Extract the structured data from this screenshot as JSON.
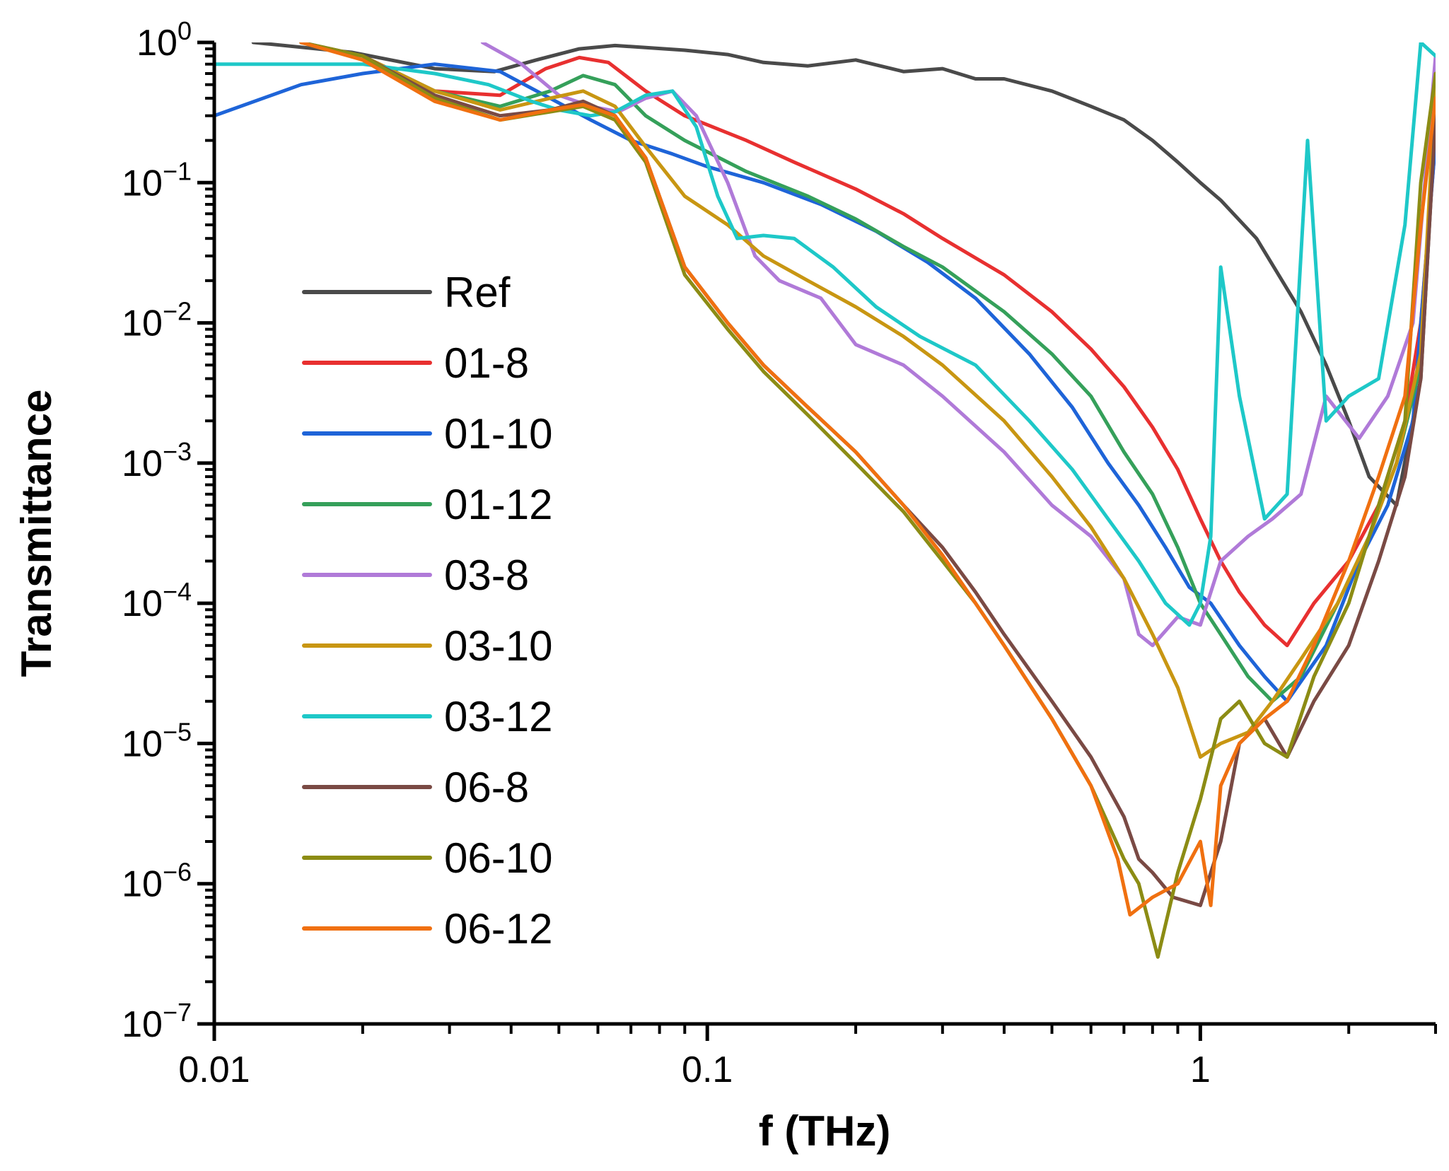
{
  "chart_data": {
    "type": "line",
    "xlabel": "f (THz)",
    "ylabel": "Transmittance",
    "x_scale": "log",
    "y_scale": "log",
    "xlim": [
      0.01,
      3.0
    ],
    "ylim": [
      1e-07,
      1
    ],
    "x_ticks": [
      {
        "value": 0.01,
        "label": "0.01"
      },
      {
        "value": 0.1,
        "label": "0.1"
      },
      {
        "value": 1,
        "label": "1"
      }
    ],
    "y_ticks": [
      {
        "value": 1,
        "base": "10",
        "exp": "0"
      },
      {
        "value": 0.1,
        "base": "10",
        "exp": "−1"
      },
      {
        "value": 0.01,
        "base": "10",
        "exp": "−2"
      },
      {
        "value": 0.001,
        "base": "10",
        "exp": "−3"
      },
      {
        "value": 0.0001,
        "base": "10",
        "exp": "−4"
      },
      {
        "value": 1e-05,
        "base": "10",
        "exp": "−5"
      },
      {
        "value": 1e-06,
        "base": "10",
        "exp": "−6"
      },
      {
        "value": 1e-07,
        "base": "10",
        "exp": "−7"
      }
    ],
    "grid": false,
    "legend_position": "left-center",
    "series": [
      {
        "name": "Ref",
        "color": "#4a4a4a",
        "x": [
          0.012,
          0.019,
          0.028,
          0.037,
          0.045,
          0.055,
          0.065,
          0.075,
          0.09,
          0.11,
          0.13,
          0.16,
          0.2,
          0.25,
          0.3,
          0.35,
          0.4,
          0.5,
          0.6,
          0.7,
          0.8,
          0.9,
          1.0,
          1.1,
          1.3,
          1.6,
          1.8,
          2.0,
          2.2,
          2.5,
          2.8,
          3.0
        ],
        "y": [
          1.0,
          0.85,
          0.65,
          0.62,
          0.75,
          0.9,
          0.95,
          0.92,
          0.88,
          0.82,
          0.72,
          0.68,
          0.75,
          0.62,
          0.65,
          0.55,
          0.55,
          0.45,
          0.35,
          0.28,
          0.2,
          0.14,
          0.1,
          0.075,
          0.04,
          0.012,
          0.005,
          0.002,
          0.0008,
          0.0005,
          0.004,
          0.3
        ]
      },
      {
        "name": "01-8",
        "color": "#e83030",
        "x": [
          0.015,
          0.02,
          0.028,
          0.038,
          0.047,
          0.055,
          0.063,
          0.075,
          0.09,
          0.12,
          0.15,
          0.2,
          0.25,
          0.3,
          0.4,
          0.5,
          0.6,
          0.7,
          0.8,
          0.9,
          1.0,
          1.1,
          1.2,
          1.35,
          1.5,
          1.7,
          2.0,
          2.3,
          2.6,
          2.8,
          3.0
        ],
        "y": [
          1.0,
          0.8,
          0.45,
          0.42,
          0.65,
          0.78,
          0.72,
          0.45,
          0.3,
          0.2,
          0.14,
          0.09,
          0.06,
          0.04,
          0.022,
          0.012,
          0.0065,
          0.0035,
          0.0018,
          0.0009,
          0.0004,
          0.0002,
          0.00012,
          7e-05,
          5e-05,
          0.0001,
          0.0002,
          0.0005,
          0.002,
          0.01,
          0.2
        ]
      },
      {
        "name": "01-10",
        "color": "#1e64d8",
        "x": [
          0.01,
          0.015,
          0.02,
          0.028,
          0.038,
          0.048,
          0.058,
          0.07,
          0.085,
          0.1,
          0.13,
          0.17,
          0.22,
          0.28,
          0.35,
          0.45,
          0.55,
          0.65,
          0.75,
          0.85,
          0.95,
          1.05,
          1.2,
          1.35,
          1.5,
          1.8,
          2.1,
          2.4,
          2.7,
          3.0
        ],
        "y": [
          0.3,
          0.5,
          0.6,
          0.7,
          0.62,
          0.4,
          0.28,
          0.2,
          0.16,
          0.13,
          0.1,
          0.07,
          0.045,
          0.027,
          0.015,
          0.006,
          0.0025,
          0.001,
          0.0005,
          0.00025,
          0.00013,
          0.0001,
          5e-05,
          3e-05,
          2e-05,
          5e-05,
          0.0002,
          0.0005,
          0.002,
          0.2
        ]
      },
      {
        "name": "01-12",
        "color": "#35a05a",
        "x": [
          0.015,
          0.02,
          0.028,
          0.038,
          0.048,
          0.056,
          0.065,
          0.075,
          0.09,
          0.12,
          0.16,
          0.2,
          0.25,
          0.3,
          0.4,
          0.5,
          0.6,
          0.7,
          0.8,
          0.9,
          1.0,
          1.1,
          1.25,
          1.4,
          1.6,
          1.9,
          2.2,
          2.5,
          2.8,
          3.0
        ],
        "y": [
          1.0,
          0.8,
          0.45,
          0.35,
          0.45,
          0.58,
          0.5,
          0.3,
          0.2,
          0.12,
          0.08,
          0.055,
          0.035,
          0.025,
          0.012,
          0.006,
          0.003,
          0.0012,
          0.0006,
          0.00025,
          0.0001,
          6e-05,
          3e-05,
          2e-05,
          3e-05,
          0.0001,
          0.0003,
          0.001,
          0.005,
          0.4
        ]
      },
      {
        "name": "03-8",
        "color": "#b07ad8",
        "x": [
          0.035,
          0.042,
          0.05,
          0.058,
          0.066,
          0.075,
          0.085,
          0.095,
          0.11,
          0.125,
          0.14,
          0.17,
          0.2,
          0.25,
          0.3,
          0.4,
          0.5,
          0.6,
          0.7,
          0.75,
          0.8,
          0.9,
          1.0,
          1.1,
          1.25,
          1.4,
          1.6,
          1.8,
          2.1,
          2.4,
          2.7,
          3.0
        ],
        "y": [
          1.0,
          0.7,
          0.42,
          0.35,
          0.32,
          0.4,
          0.45,
          0.3,
          0.1,
          0.03,
          0.02,
          0.015,
          0.007,
          0.005,
          0.003,
          0.0012,
          0.0005,
          0.0003,
          0.00015,
          6e-05,
          5e-05,
          8e-05,
          7e-05,
          0.0002,
          0.0003,
          0.0004,
          0.0006,
          0.003,
          0.0015,
          0.003,
          0.01,
          0.8
        ]
      },
      {
        "name": "03-10",
        "color": "#c89612",
        "x": [
          0.015,
          0.02,
          0.028,
          0.038,
          0.048,
          0.056,
          0.065,
          0.075,
          0.09,
          0.11,
          0.13,
          0.16,
          0.2,
          0.25,
          0.3,
          0.4,
          0.5,
          0.6,
          0.7,
          0.8,
          0.9,
          1.0,
          1.1,
          1.25,
          1.4,
          1.6,
          1.9,
          2.2,
          2.5,
          2.8,
          3.0
        ],
        "y": [
          1.0,
          0.8,
          0.45,
          0.33,
          0.4,
          0.45,
          0.35,
          0.18,
          0.08,
          0.05,
          0.03,
          0.02,
          0.013,
          0.008,
          0.005,
          0.002,
          0.0008,
          0.00035,
          0.00015,
          6e-05,
          2.5e-05,
          8e-06,
          1e-05,
          1.2e-05,
          2e-05,
          4e-05,
          0.0001,
          0.0003,
          0.001,
          0.006,
          0.5
        ]
      },
      {
        "name": "03-12",
        "color": "#1ec8c8",
        "x": [
          0.01,
          0.015,
          0.02,
          0.028,
          0.036,
          0.044,
          0.05,
          0.058,
          0.065,
          0.075,
          0.085,
          0.095,
          0.105,
          0.115,
          0.13,
          0.15,
          0.18,
          0.22,
          0.27,
          0.35,
          0.45,
          0.55,
          0.65,
          0.75,
          0.85,
          0.95,
          1.0,
          1.05,
          1.1,
          1.2,
          1.35,
          1.5,
          1.65,
          1.8,
          2.0,
          2.3,
          2.6,
          2.8,
          3.0
        ],
        "y": [
          0.7,
          0.7,
          0.7,
          0.6,
          0.5,
          0.38,
          0.33,
          0.3,
          0.32,
          0.42,
          0.45,
          0.25,
          0.08,
          0.04,
          0.042,
          0.04,
          0.025,
          0.013,
          0.008,
          0.005,
          0.002,
          0.0009,
          0.0004,
          0.0002,
          0.0001,
          7e-05,
          0.0001,
          0.0003,
          0.025,
          0.003,
          0.0004,
          0.0006,
          0.2,
          0.002,
          0.003,
          0.004,
          0.05,
          1.0,
          0.8
        ]
      },
      {
        "name": "06-8",
        "color": "#7a4a44",
        "x": [
          0.015,
          0.02,
          0.028,
          0.038,
          0.048,
          0.056,
          0.065,
          0.075,
          0.09,
          0.11,
          0.13,
          0.16,
          0.2,
          0.25,
          0.3,
          0.35,
          0.4,
          0.5,
          0.6,
          0.7,
          0.75,
          0.8,
          0.88,
          1.0,
          1.1,
          1.2,
          1.35,
          1.5,
          1.7,
          2.0,
          2.3,
          2.6,
          2.8,
          3.0
        ],
        "y": [
          1.0,
          0.8,
          0.42,
          0.3,
          0.33,
          0.38,
          0.3,
          0.15,
          0.025,
          0.01,
          0.005,
          0.0025,
          0.0012,
          0.0005,
          0.00025,
          0.00012,
          6e-05,
          2e-05,
          8e-06,
          3e-06,
          1.5e-06,
          1.2e-06,
          8e-07,
          7e-07,
          2e-06,
          1e-05,
          1.5e-05,
          8e-06,
          2e-05,
          5e-05,
          0.0002,
          0.0008,
          0.004,
          0.3
        ]
      },
      {
        "name": "06-10",
        "color": "#8c8c14",
        "x": [
          0.015,
          0.02,
          0.028,
          0.038,
          0.048,
          0.056,
          0.065,
          0.075,
          0.09,
          0.11,
          0.13,
          0.16,
          0.2,
          0.25,
          0.3,
          0.35,
          0.4,
          0.5,
          0.6,
          0.7,
          0.75,
          0.82,
          0.9,
          1.0,
          1.1,
          1.2,
          1.35,
          1.5,
          1.7,
          2.0,
          2.3,
          2.6,
          2.8,
          3.0
        ],
        "y": [
          1.0,
          0.8,
          0.4,
          0.28,
          0.32,
          0.35,
          0.28,
          0.14,
          0.022,
          0.009,
          0.0045,
          0.0022,
          0.001,
          0.00045,
          0.0002,
          0.0001,
          5e-05,
          1.5e-05,
          5e-06,
          1.5e-06,
          1e-06,
          3e-07,
          1.2e-06,
          4e-06,
          1.5e-05,
          2e-05,
          1e-05,
          8e-06,
          3e-05,
          0.0001,
          0.0005,
          0.002,
          0.1,
          0.6
        ]
      },
      {
        "name": "06-12",
        "color": "#f07010",
        "x": [
          0.015,
          0.02,
          0.028,
          0.038,
          0.048,
          0.056,
          0.065,
          0.075,
          0.09,
          0.11,
          0.13,
          0.16,
          0.2,
          0.25,
          0.3,
          0.35,
          0.4,
          0.5,
          0.6,
          0.68,
          0.72,
          0.8,
          0.9,
          1.0,
          1.05,
          1.1,
          1.2,
          1.35,
          1.5,
          1.7,
          2.0,
          2.3,
          2.6,
          2.8,
          3.0
        ],
        "y": [
          1.0,
          0.75,
          0.38,
          0.28,
          0.33,
          0.36,
          0.3,
          0.15,
          0.025,
          0.01,
          0.005,
          0.0025,
          0.0012,
          0.0005,
          0.00022,
          0.0001,
          5e-05,
          1.5e-05,
          5e-06,
          1.5e-06,
          6e-07,
          8e-07,
          1e-06,
          2e-06,
          7e-07,
          5e-06,
          1e-05,
          1.5e-05,
          2e-05,
          5e-05,
          0.0002,
          0.0008,
          0.003,
          0.05,
          0.4
        ]
      }
    ]
  }
}
